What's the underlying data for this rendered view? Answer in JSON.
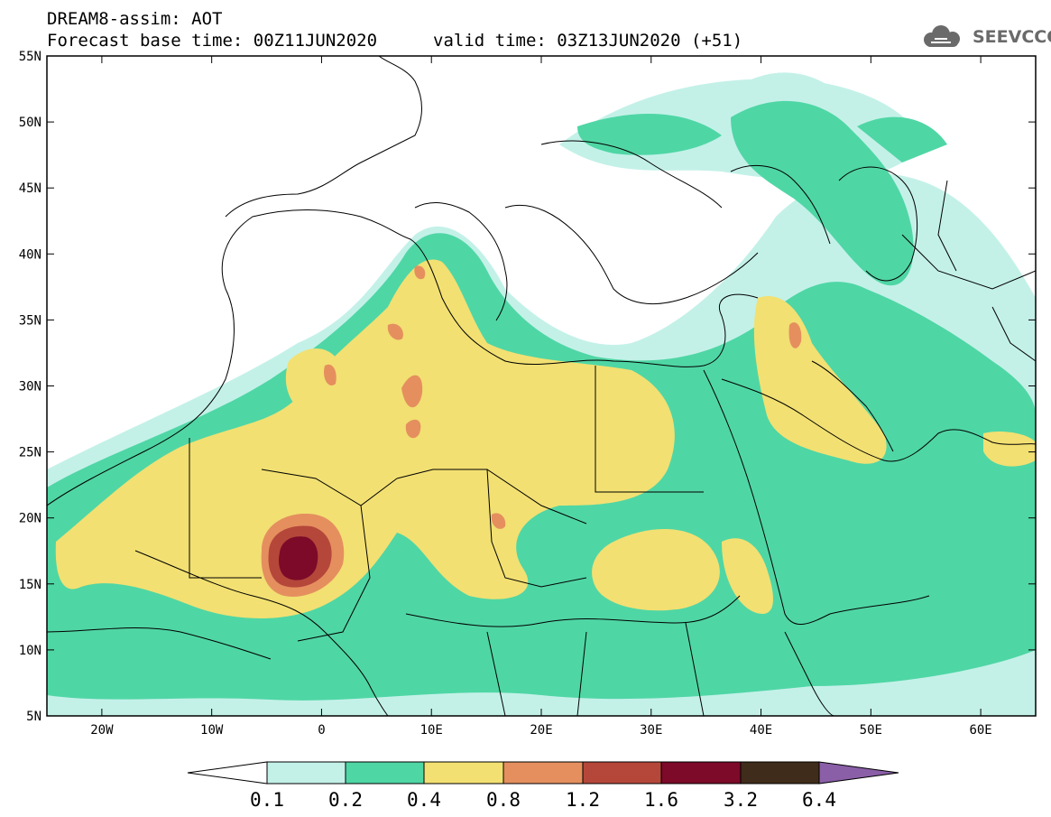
{
  "header": {
    "title": "DREAM8-assim: AOT",
    "base_time": "Forecast base time: 00Z11JUN2020",
    "valid_time": "valid time: 03Z13JUN2020 (+51)"
  },
  "logo": {
    "text": "SEEVCCC",
    "icon": "cloud-icon"
  },
  "map": {
    "lat_labels": [
      "55N",
      "50N",
      "45N",
      "40N",
      "35N",
      "30N",
      "25N",
      "20N",
      "15N",
      "10N",
      "5N"
    ],
    "lon_labels": [
      "20W",
      "10W",
      "0",
      "10E",
      "20E",
      "30E",
      "40E",
      "50E",
      "60E"
    ],
    "lon_range": [
      -25,
      65
    ],
    "lat_range": [
      5,
      55
    ]
  },
  "colorbar": {
    "labels": [
      "0.1",
      "0.2",
      "0.4",
      "0.8",
      "1.2",
      "1.6",
      "3.2",
      "6.4"
    ],
    "colors": [
      "#ffffff",
      "#c3f1e8",
      "#4fd6a5",
      "#f2e072",
      "#e58f5f",
      "#b5473a",
      "#7c0a28",
      "#3f2c1a",
      "#8a5fa8"
    ]
  }
}
